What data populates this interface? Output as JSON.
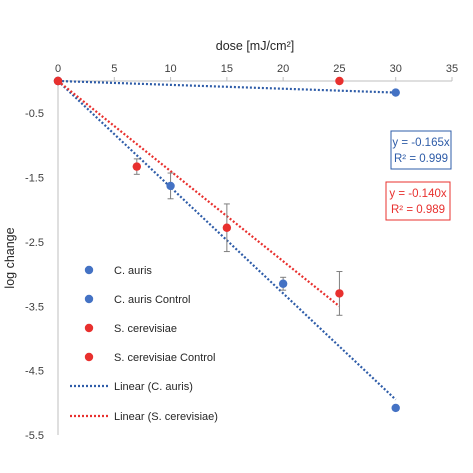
{
  "chart_data": {
    "type": "scatter",
    "title": "",
    "xlabel": "dose [mJ/cm²]",
    "ylabel": "log change",
    "xlim": [
      0,
      35
    ],
    "ylim": [
      -5.5,
      0
    ],
    "x_ticks": [
      0,
      5,
      10,
      15,
      20,
      25,
      30,
      35
    ],
    "y_ticks": [
      -0.5,
      -1.5,
      -2.5,
      -3.5,
      -4.5,
      -5.5
    ],
    "x_axis_position": "top",
    "grid": false,
    "legend_position": "bottom-left",
    "series": [
      {
        "name": "C. auris",
        "kind": "points",
        "color": "#4472C4",
        "points": [
          {
            "x": 0,
            "y": 0,
            "err": 0
          },
          {
            "x": 10,
            "y": -1.63,
            "err": 0.2
          },
          {
            "x": 20,
            "y": -3.15,
            "err": 0.1
          },
          {
            "x": 30,
            "y": -5.08,
            "err": 0.04
          }
        ]
      },
      {
        "name": "C. auris Control",
        "kind": "points",
        "color": "#4472C4",
        "points": [
          {
            "x": 0,
            "y": 0,
            "err": 0
          },
          {
            "x": 30,
            "y": -0.18,
            "err": 0
          }
        ]
      },
      {
        "name": "S. cerevisiae",
        "kind": "points",
        "color": "#E8302E",
        "points": [
          {
            "x": 0,
            "y": 0,
            "err": 0
          },
          {
            "x": 7,
            "y": -1.33,
            "err": 0.12
          },
          {
            "x": 15,
            "y": -2.28,
            "err": 0.37
          },
          {
            "x": 25,
            "y": -3.3,
            "err": 0.34
          }
        ]
      },
      {
        "name": "S. cerevisiae Control",
        "kind": "points",
        "color": "#E8302E",
        "points": [
          {
            "x": 0,
            "y": 0,
            "err": 0
          },
          {
            "x": 25,
            "y": 0,
            "err": 0
          }
        ]
      },
      {
        "name": "Linear (C. auris)",
        "kind": "trendline",
        "color": "#2E5CA8",
        "x": [
          0,
          30
        ],
        "y": [
          0,
          -4.95
        ]
      },
      {
        "name": "Linear (S. cerevisiae)",
        "kind": "trendline",
        "color": "#E8302E",
        "x": [
          0,
          25
        ],
        "y": [
          0,
          -3.5
        ]
      },
      {
        "name": "",
        "kind": "trendline",
        "color": "#2E5CA8",
        "x": [
          0,
          30
        ],
        "y": [
          0,
          -0.18
        ]
      }
    ],
    "annotations": [
      {
        "line1": "y = -0.165x",
        "line2": "R² = 0.999",
        "color": "#2E5CA8"
      },
      {
        "line1": "y = -0.140x",
        "line2": "R² = 0.989",
        "color": "#E8302E"
      }
    ]
  }
}
